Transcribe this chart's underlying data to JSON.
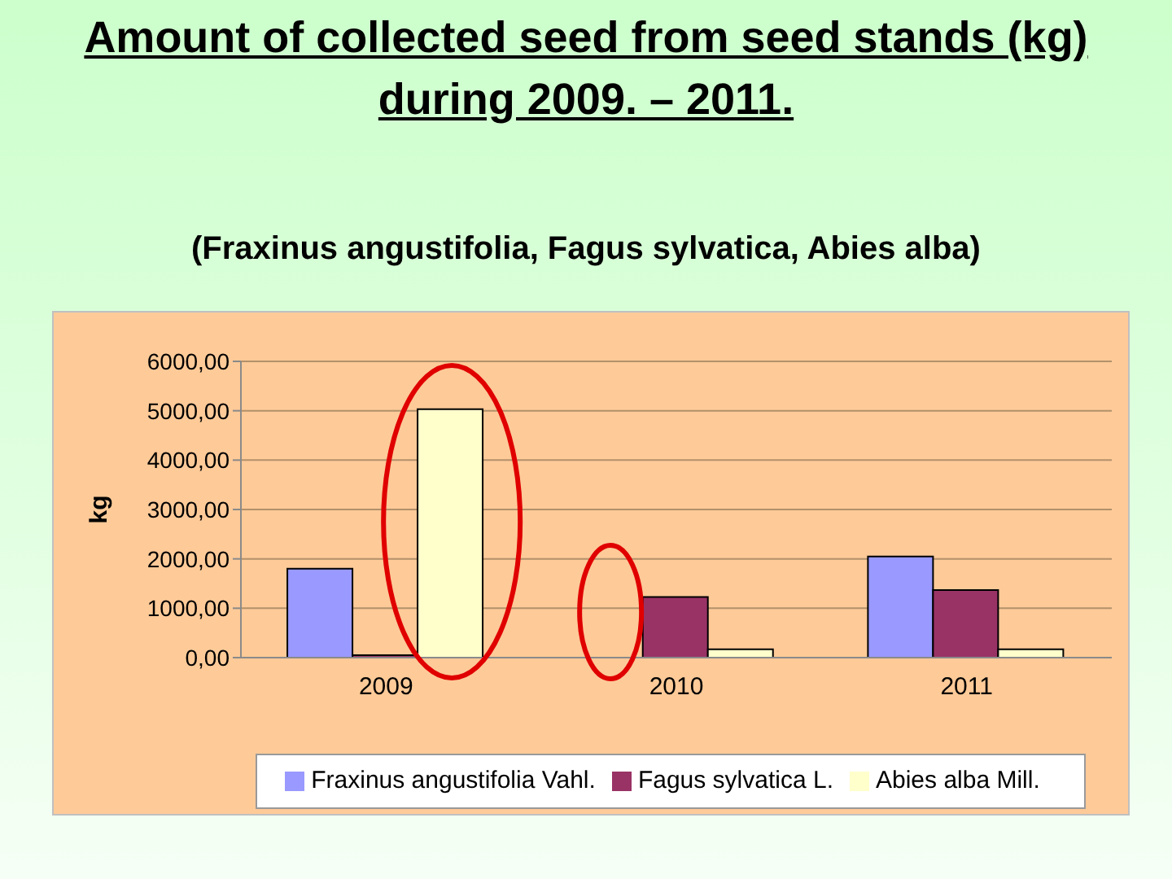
{
  "chart_data": {
    "type": "bar",
    "title": "Amount of collected seed from seed stands (kg) during 2009. – 2011.",
    "subtitle": "(Fraxinus angustifolia, Fagus sylvatica, Abies alba)",
    "ylabel": "kg",
    "categories": [
      "2009",
      "2010",
      "2011"
    ],
    "series": [
      {
        "name": "Fraxinus angustifolia Vahl.",
        "color": "#9999ff",
        "values": [
          1800,
          null,
          2050
        ]
      },
      {
        "name": "Fagus sylvatica L.",
        "color": "#993366",
        "values": [
          50,
          1230,
          1370
        ]
      },
      {
        "name": "Abies alba Mill.",
        "color": "#ffffcc",
        "values": [
          5030,
          170,
          170
        ]
      }
    ],
    "ylim": [
      0,
      6000
    ],
    "yticks": [
      {
        "value": 0,
        "label": "0,00"
      },
      {
        "value": 1000,
        "label": "1000,00"
      },
      {
        "value": 2000,
        "label": "2000,00"
      },
      {
        "value": 3000,
        "label": "3000,00"
      },
      {
        "value": 4000,
        "label": "4000,00"
      },
      {
        "value": 5000,
        "label": "5000,00"
      },
      {
        "value": 6000,
        "label": "6000,00"
      }
    ],
    "grid": "y",
    "legend": "bottom"
  }
}
